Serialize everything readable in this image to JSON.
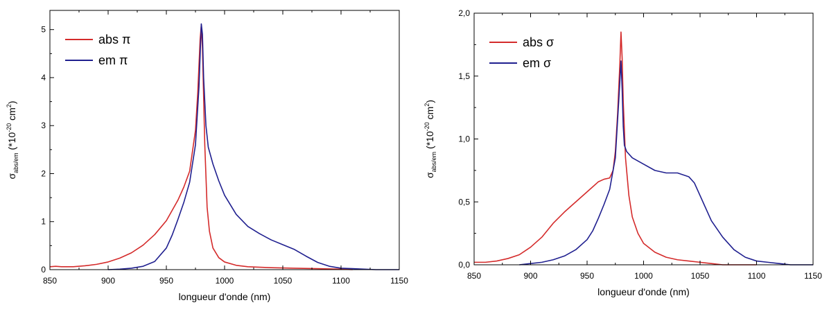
{
  "chart_data": [
    {
      "type": "line",
      "title": "",
      "xlabel": "longueur d'onde (nm)",
      "ylabel": {
        "base": "σ",
        "sub": "abs/em",
        "rest": " (*10",
        "sup": "-20",
        "unit": " cm",
        "sup2": "2",
        "close": ")"
      },
      "xlim": [
        850,
        1150
      ],
      "ylim": [
        0,
        5.4
      ],
      "xticks": [
        850,
        900,
        950,
        1000,
        1050,
        1100,
        1150
      ],
      "yticks": [
        0,
        1,
        2,
        3,
        4,
        5
      ],
      "ytick_labels": [
        "0",
        "1",
        "2",
        "3",
        "4",
        "5"
      ],
      "grid": false,
      "legend_position": "top-left",
      "series": [
        {
          "name": "abs π",
          "color": "#d42a2a",
          "x": [
            850,
            855,
            860,
            870,
            880,
            890,
            900,
            910,
            920,
            930,
            940,
            950,
            960,
            965,
            970,
            975,
            977,
            979,
            980,
            981,
            983,
            985,
            987,
            990,
            995,
            1000,
            1010,
            1020,
            1040,
            1060,
            1080,
            1100,
            1110
          ],
          "y": [
            0.06,
            0.07,
            0.06,
            0.06,
            0.08,
            0.11,
            0.16,
            0.24,
            0.35,
            0.51,
            0.73,
            1.02,
            1.45,
            1.72,
            2.05,
            2.9,
            3.7,
            4.8,
            5.1,
            4.6,
            2.6,
            1.3,
            0.8,
            0.45,
            0.25,
            0.16,
            0.09,
            0.06,
            0.04,
            0.03,
            0.02,
            0.01,
            0.0
          ]
        },
        {
          "name": "em π",
          "color": "#1f1f8f",
          "x": [
            900,
            910,
            920,
            930,
            940,
            950,
            955,
            960,
            965,
            970,
            975,
            978,
            980,
            981,
            982,
            984,
            986,
            990,
            995,
            1000,
            1010,
            1020,
            1030,
            1040,
            1050,
            1060,
            1070,
            1080,
            1090,
            1100,
            1110,
            1120,
            1130,
            1140,
            1150
          ],
          "y": [
            0.0,
            0.01,
            0.03,
            0.07,
            0.17,
            0.45,
            0.72,
            1.05,
            1.4,
            1.82,
            2.6,
            3.8,
            5.12,
            4.9,
            4.0,
            3.0,
            2.55,
            2.2,
            1.85,
            1.55,
            1.15,
            0.9,
            0.75,
            0.62,
            0.52,
            0.42,
            0.28,
            0.15,
            0.07,
            0.03,
            0.02,
            0.01,
            0.0,
            0.0,
            0.0
          ]
        }
      ]
    },
    {
      "type": "line",
      "title": "",
      "xlabel": "longueur d'onde (nm)",
      "ylabel": {
        "base": "σ",
        "sub": "abs/em",
        "rest": " (*10",
        "sup": "-20",
        "unit": " cm",
        "sup2": "2",
        "close": ")"
      },
      "xlim": [
        850,
        1150
      ],
      "ylim": [
        0,
        2.0
      ],
      "xticks": [
        850,
        900,
        950,
        1000,
        1050,
        1100,
        1150
      ],
      "yticks": [
        0,
        0.5,
        1.0,
        1.5,
        2.0
      ],
      "ytick_labels": [
        "0,0",
        "0,5",
        "1,0",
        "1,5",
        "2,0"
      ],
      "grid": false,
      "legend_position": "top-left",
      "series": [
        {
          "name": "abs σ",
          "color": "#d42a2a",
          "x": [
            850,
            860,
            870,
            880,
            890,
            900,
            910,
            920,
            930,
            940,
            950,
            955,
            960,
            965,
            970,
            973,
            975,
            977,
            979,
            980,
            981,
            982,
            984,
            987,
            990,
            995,
            1000,
            1010,
            1020,
            1030,
            1040,
            1050,
            1060,
            1070,
            1080,
            1090,
            1100
          ],
          "y": [
            0.02,
            0.02,
            0.03,
            0.05,
            0.08,
            0.14,
            0.22,
            0.33,
            0.42,
            0.5,
            0.58,
            0.62,
            0.66,
            0.68,
            0.69,
            0.75,
            0.9,
            1.2,
            1.6,
            1.85,
            1.65,
            1.3,
            0.85,
            0.55,
            0.38,
            0.25,
            0.17,
            0.1,
            0.06,
            0.04,
            0.03,
            0.02,
            0.01,
            0.0,
            0.0,
            0.0,
            0.0
          ]
        },
        {
          "name": "em σ",
          "color": "#1f1f8f",
          "x": [
            890,
            900,
            910,
            920,
            930,
            940,
            950,
            955,
            960,
            965,
            970,
            975,
            978,
            980,
            981,
            982,
            983,
            985,
            990,
            1000,
            1010,
            1020,
            1030,
            1040,
            1045,
            1050,
            1055,
            1060,
            1070,
            1080,
            1090,
            1100,
            1110,
            1120,
            1130,
            1140,
            1150
          ],
          "y": [
            0.0,
            0.01,
            0.02,
            0.04,
            0.07,
            0.12,
            0.2,
            0.27,
            0.37,
            0.48,
            0.6,
            0.85,
            1.3,
            1.62,
            1.4,
            1.1,
            0.95,
            0.9,
            0.85,
            0.8,
            0.75,
            0.73,
            0.73,
            0.7,
            0.65,
            0.55,
            0.45,
            0.35,
            0.22,
            0.12,
            0.06,
            0.03,
            0.02,
            0.01,
            0.0,
            0.0,
            0.0
          ]
        }
      ]
    }
  ]
}
